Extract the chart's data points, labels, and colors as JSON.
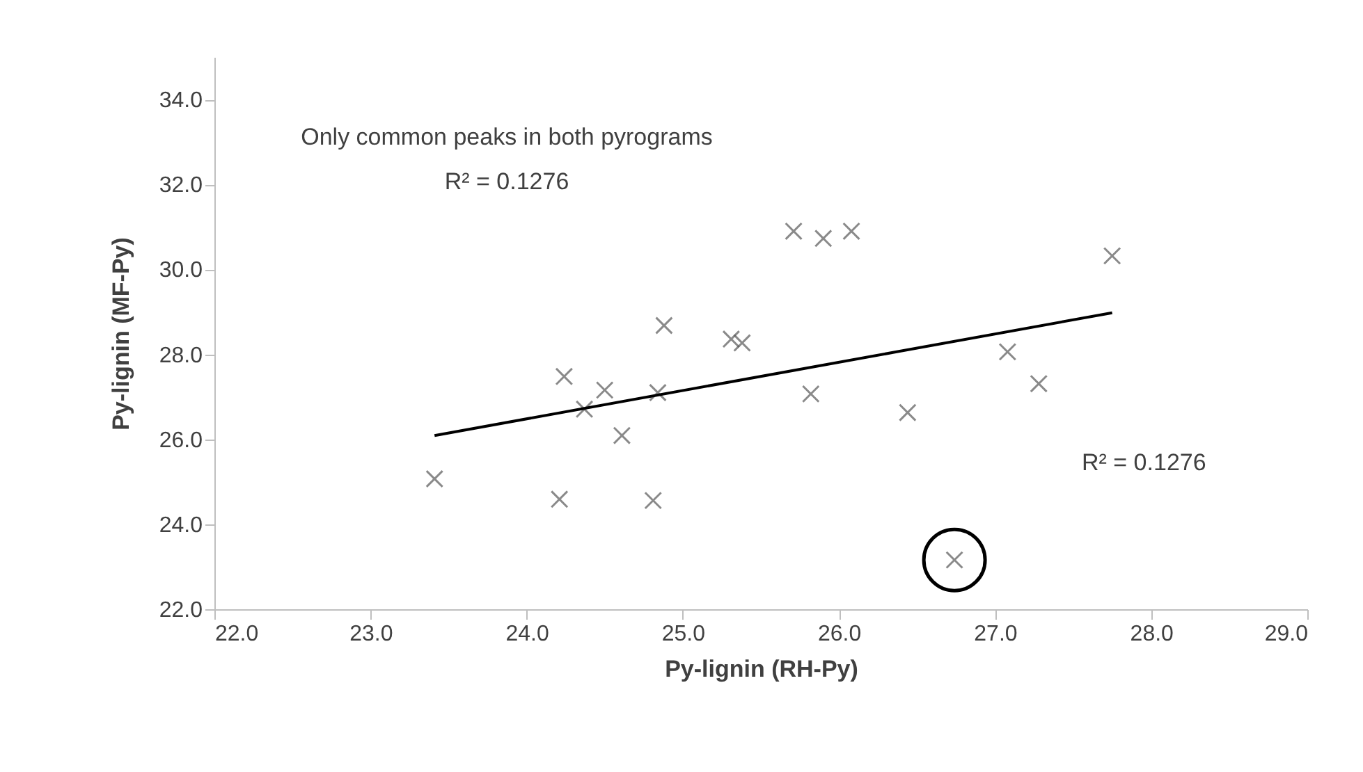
{
  "chart_data": {
    "type": "scatter",
    "xlabel": "Py-lignin (RH-Py)",
    "ylabel": "Py-lignin (MF-Py)",
    "annotations": [
      "Only common peaks in both pyrograms",
      "R² = 0.1276",
      "R² = 0.1276"
    ],
    "xlim": [
      22,
      29
    ],
    "ylim": [
      22,
      35
    ],
    "xticks": [
      {
        "value": 22,
        "label": "22.0"
      },
      {
        "value": 23,
        "label": "23.0"
      },
      {
        "value": 24,
        "label": "24.0"
      },
      {
        "value": 25,
        "label": "25.0"
      },
      {
        "value": 26,
        "label": "26.0"
      },
      {
        "value": 27,
        "label": "27.0"
      },
      {
        "value": 28,
        "label": "28.0"
      },
      {
        "value": 29,
        "label": "29.0"
      }
    ],
    "yticks": [
      {
        "value": 22,
        "label": "22.0"
      },
      {
        "value": 24,
        "label": "24.0"
      },
      {
        "value": 26,
        "label": "26.0"
      },
      {
        "value": 28,
        "label": "28.0"
      },
      {
        "value": 30,
        "label": "30.0"
      },
      {
        "value": 32,
        "label": "32.0"
      },
      {
        "value": 34,
        "label": "34.0"
      }
    ],
    "grid": false,
    "series": [
      {
        "marker": "cross",
        "color": "#595959",
        "x": [
          23.41,
          24.21,
          24.24,
          24.37,
          24.5,
          24.61,
          24.81,
          24.84,
          24.88,
          25.31,
          25.38,
          25.71,
          25.9,
          26.08,
          25.82,
          26.44,
          27.08,
          27.28,
          27.75,
          26.74
        ],
        "values": [
          25.07,
          24.59,
          27.48,
          26.71,
          27.16,
          26.09,
          24.56,
          27.1,
          28.68,
          28.36,
          28.27,
          30.9,
          30.73,
          30.9,
          27.07,
          26.63,
          28.06,
          27.31,
          30.32,
          23.16
        ]
      },
      {
        "type": "line",
        "color": "#000000",
        "x": [
          23.41,
          27.75
        ],
        "values": [
          26.09,
          28.98
        ]
      }
    ]
  }
}
